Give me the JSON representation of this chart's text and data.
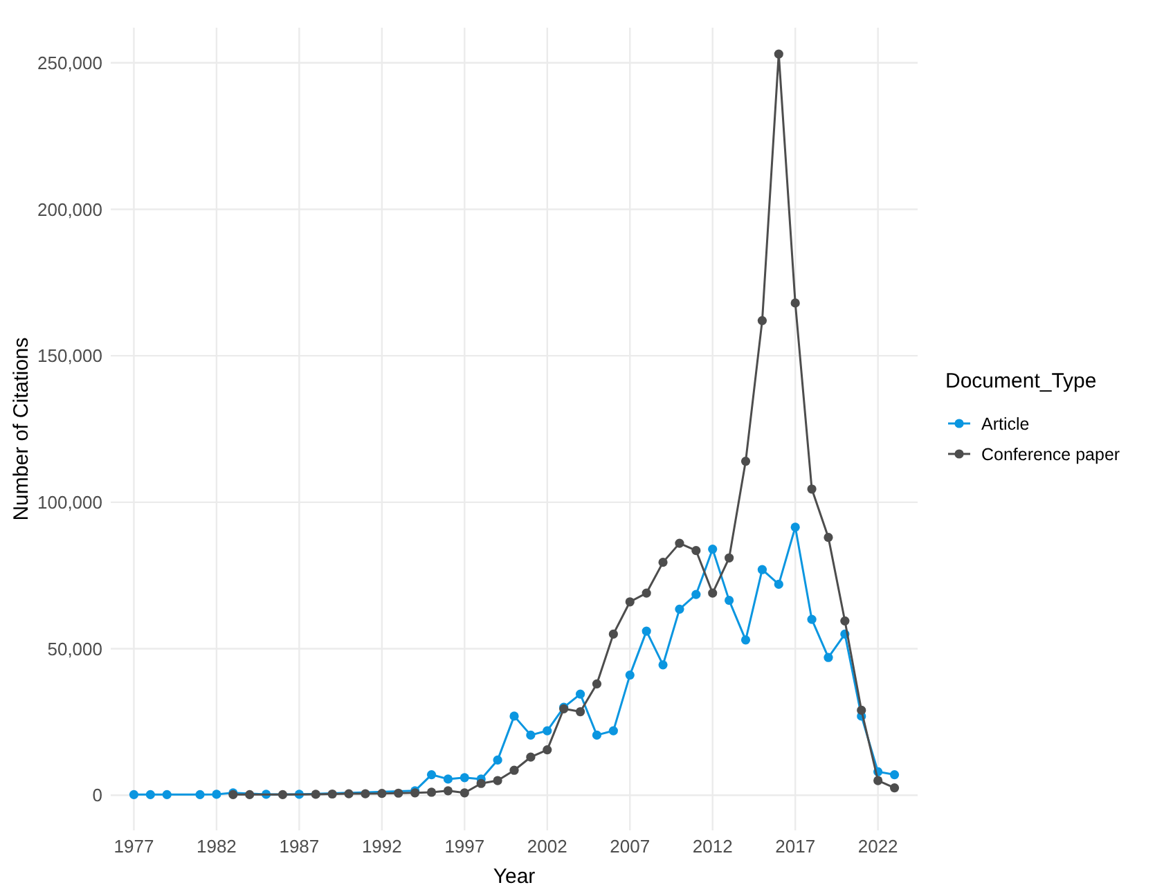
{
  "chart_data": {
    "type": "line",
    "xlabel": "Year",
    "ylabel": "Number of Citations",
    "legend_title": "Document_Type",
    "legend": "right",
    "grid": true,
    "marker": "circle",
    "x": [
      1977,
      1978,
      1979,
      1980,
      1981,
      1982,
      1983,
      1984,
      1985,
      1986,
      1987,
      1988,
      1989,
      1990,
      1991,
      1992,
      1993,
      1994,
      1995,
      1996,
      1997,
      1998,
      1999,
      2000,
      2001,
      2002,
      2003,
      2004,
      2005,
      2006,
      2007,
      2008,
      2009,
      2010,
      2011,
      2012,
      2013,
      2014,
      2015,
      2016,
      2017,
      2018,
      2019,
      2020,
      2021,
      2022,
      2023
    ],
    "xlim": [
      1975.6,
      2024.4
    ],
    "xticks": [
      1977,
      1982,
      1987,
      1992,
      1997,
      2002,
      2007,
      2012,
      2017,
      2022
    ],
    "ylim": [
      -12000,
      262000
    ],
    "yticks": [
      {
        "value": 0,
        "label": "0"
      },
      {
        "value": 50000,
        "label": "50,000"
      },
      {
        "value": 100000,
        "label": "100,000"
      },
      {
        "value": 150000,
        "label": "150,000"
      },
      {
        "value": 200000,
        "label": "200,000"
      },
      {
        "value": 250000,
        "label": "250,000"
      }
    ],
    "series": [
      {
        "name": "Article",
        "color": "#0b96e0",
        "values": [
          200,
          200,
          200,
          null,
          200,
          300,
          800,
          null,
          300,
          null,
          300,
          null,
          null,
          null,
          null,
          null,
          null,
          1500,
          7000,
          5500,
          6000,
          5500,
          12000,
          27000,
          20500,
          22000,
          30000,
          34500,
          20500,
          22000,
          41000,
          56000,
          44500,
          63500,
          68500,
          84000,
          66500,
          53000,
          77000,
          72000,
          91500,
          60000,
          47000,
          55000,
          27000,
          8000,
          7000
        ]
      },
      {
        "name": "Conference paper",
        "color": "#4d4d4d",
        "values": [
          null,
          null,
          null,
          null,
          null,
          null,
          200,
          200,
          null,
          200,
          null,
          300,
          400,
          500,
          500,
          600,
          700,
          800,
          1000,
          1500,
          800,
          4000,
          5000,
          8500,
          13000,
          15500,
          29500,
          28500,
          38000,
          55000,
          66000,
          69000,
          79500,
          86000,
          83500,
          69000,
          81000,
          114000,
          162000,
          253000,
          168000,
          104500,
          88000,
          59500,
          29000,
          5000,
          2500
        ]
      }
    ]
  }
}
